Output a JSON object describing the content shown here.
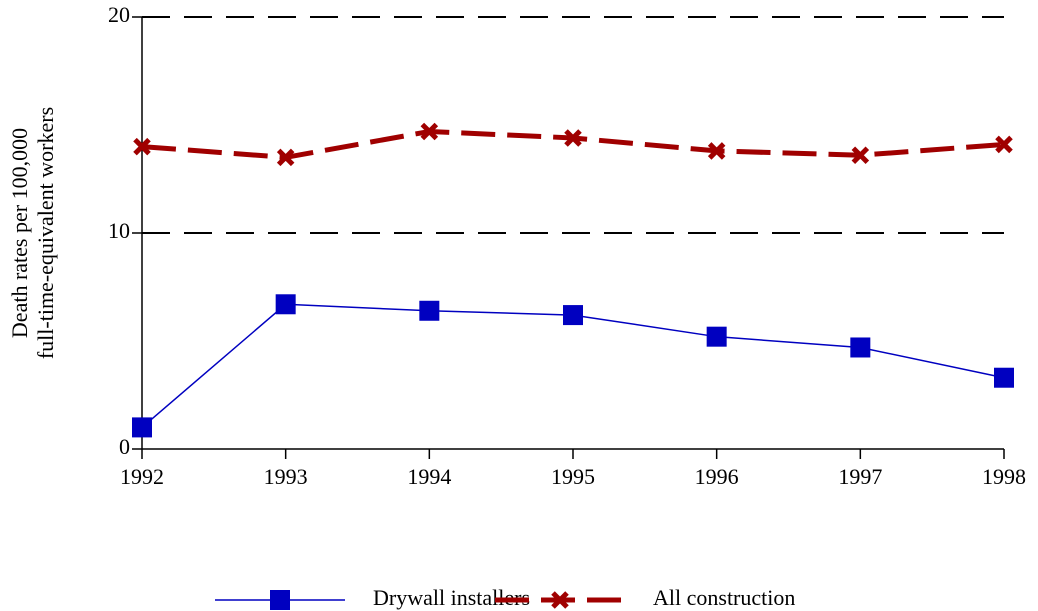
{
  "chart_data": {
    "type": "line",
    "y_label": [
      "Death rates per 100,000",
      "full-time-equivalent workers"
    ],
    "x": [
      1992,
      1993,
      1994,
      1995,
      1996,
      1997,
      1998
    ],
    "xlim": [
      1992,
      1998
    ],
    "xticks": [
      1992,
      1993,
      1994,
      1995,
      1996,
      1997,
      1998
    ],
    "ylim": [
      0,
      20
    ],
    "yticks": [
      0,
      10,
      20
    ],
    "grid": true,
    "series": [
      {
        "name": "Drywall installers",
        "color": "#0000c0",
        "marker": "square",
        "dashed": false,
        "values": [
          1.0,
          6.7,
          6.4,
          6.2,
          5.2,
          4.7,
          3.3
        ]
      },
      {
        "name": "All construction",
        "color": "#a00000",
        "marker": "x",
        "dashed": true,
        "values": [
          14.0,
          13.5,
          14.7,
          14.4,
          13.8,
          13.6,
          14.1
        ]
      }
    ]
  }
}
